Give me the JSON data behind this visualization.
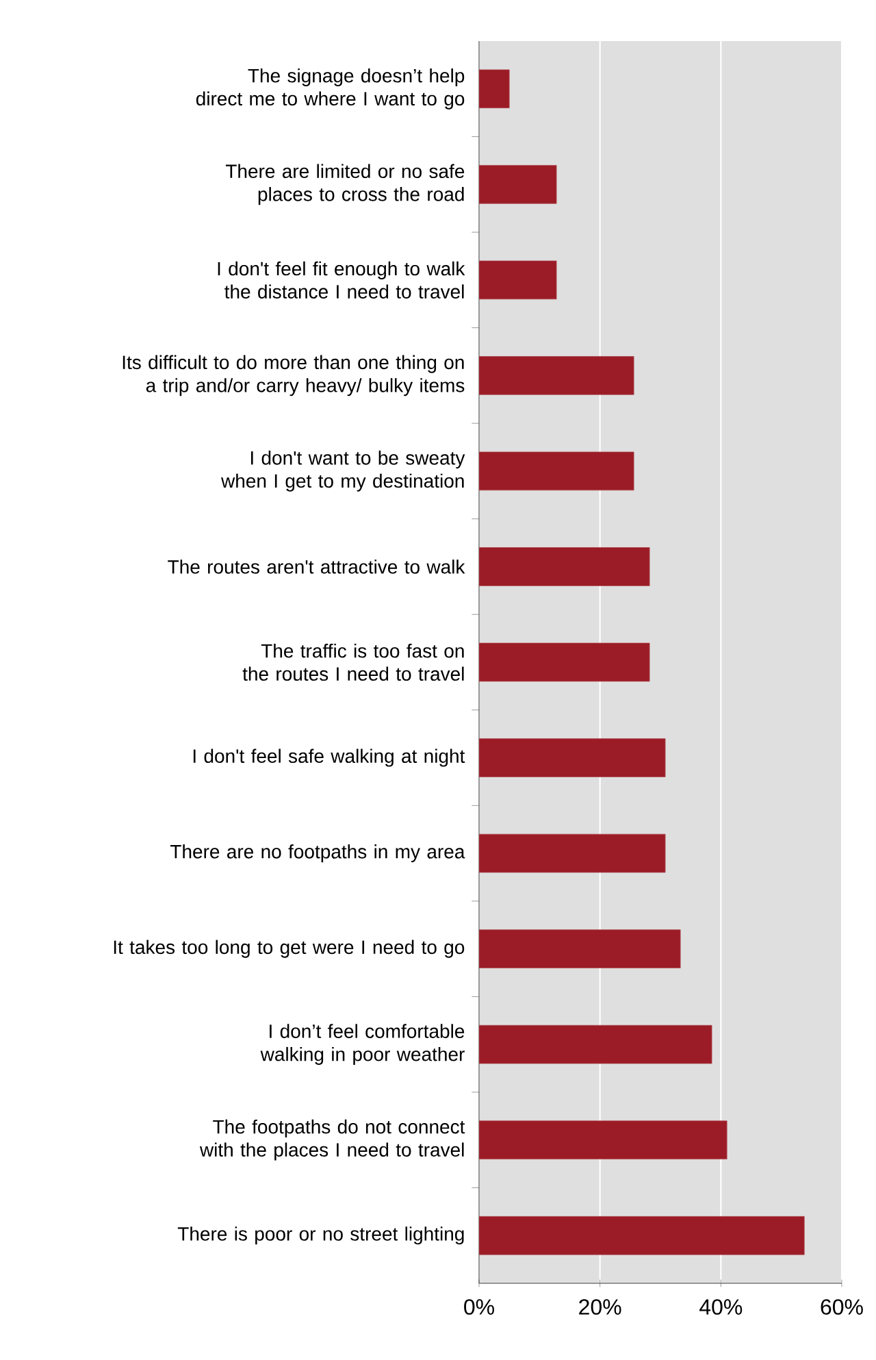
{
  "chart_data": {
    "type": "bar",
    "orientation": "horizontal",
    "color": "#9b1c26",
    "grid": "x",
    "categories": [
      "The signage doesn’t help direct me to where I want to go",
      "There are limited or no safe places to cross the road",
      "I don't feel fit enough to walk the distance I need to travel",
      "Its difficult to do more than one thing on a trip and/or carry heavy/ bulky items",
      "I don't want to be sweaty when I get to my destination",
      "The routes aren't attractive to walk",
      "The traffic is too fast on the routes I need to travel",
      "I don't feel safe walking at night",
      "There are no footpaths in my area",
      "It takes too long to get were I need to go",
      "I don’t feel comfortable walking in poor weather",
      "The footpaths do not connect with the places I need to travel",
      "There is poor or no street lighting"
    ],
    "values": [
      5.0,
      12.8,
      12.8,
      25.6,
      25.6,
      28.2,
      28.2,
      30.8,
      30.8,
      33.3,
      38.5,
      41.0,
      53.8
    ],
    "xlim": [
      0,
      60
    ],
    "xticks": [
      {
        "value": 0,
        "label": "0%"
      },
      {
        "value": 20,
        "label": "20%"
      },
      {
        "value": 40,
        "label": "40%"
      },
      {
        "value": 60,
        "label": "60%"
      }
    ]
  }
}
